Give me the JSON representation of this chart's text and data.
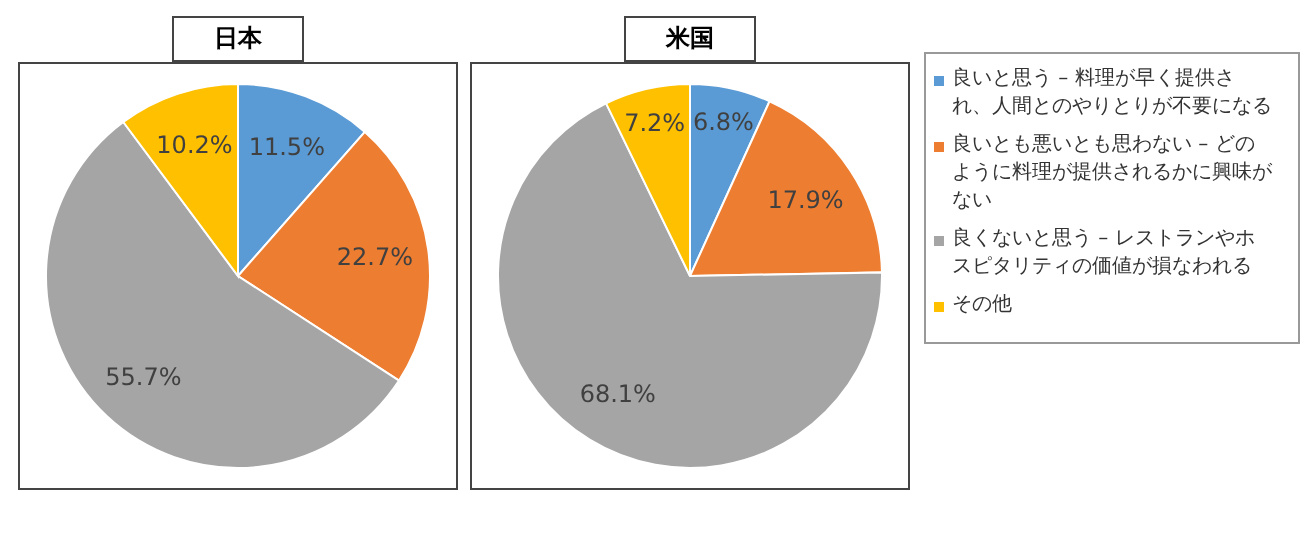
{
  "chart_data": [
    {
      "type": "pie",
      "title": "日本",
      "values": [
        11.5,
        22.7,
        55.7,
        10.2
      ],
      "value_labels": [
        "11.5%",
        "22.7%",
        "55.7%",
        "10.2%"
      ],
      "colors": [
        "#5b9bd5",
        "#ed7d31",
        "#a5a5a5",
        "#ffc000"
      ]
    },
    {
      "type": "pie",
      "title": "米国",
      "categories": [
        "良いと思う – 料理が早く提供され、人間とのやりとりが不要になる",
        "良いとも悪いとも思わない – どのように料理が提供されるかに興味がない",
        "良くないと思う – レストランやホスピタリティの価値が損なわれる",
        "その他"
      ],
      "values": [
        6.8,
        17.9,
        68.1,
        7.2
      ],
      "value_labels": [
        "6.8%",
        "17.9%",
        "68.1%",
        "7.2%"
      ],
      "colors": [
        "#5b9bd5",
        "#ed7d31",
        "#a5a5a5",
        "#ffc000"
      ],
      "legend": "right"
    }
  ]
}
